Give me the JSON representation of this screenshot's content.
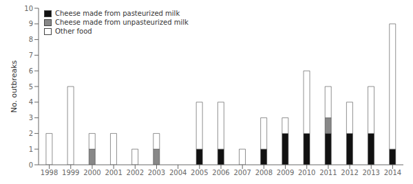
{
  "chart_data": {
    "type": "bar",
    "stacked": true,
    "categories": [
      "1998",
      "1999",
      "2000",
      "2001",
      "2002",
      "2003",
      "2004",
      "2005",
      "2006",
      "2007",
      "2008",
      "2009",
      "2010",
      "2011",
      "2012",
      "2013",
      "2014"
    ],
    "series": [
      {
        "name": "Cheese made from pasteurized milk",
        "color": "#111111",
        "values": [
          0,
          0,
          0,
          0,
          0,
          0,
          0,
          1,
          1,
          0,
          1,
          2,
          2,
          2,
          2,
          2,
          1
        ]
      },
      {
        "name": "Cheese made from unpasteurized milk",
        "color": "#888888",
        "values": [
          0,
          0,
          1,
          0,
          0,
          1,
          0,
          0,
          0,
          0,
          0,
          0,
          0,
          1,
          0,
          0,
          0
        ]
      },
      {
        "name": "Other food",
        "color": "#ffffff",
        "values": [
          2,
          5,
          1,
          2,
          1,
          1,
          0,
          3,
          3,
          1,
          2,
          1,
          4,
          2,
          2,
          3,
          8
        ]
      }
    ],
    "ylabel": "No. outbreaks",
    "ylim": [
      0,
      10
    ],
    "yticks": [
      0,
      1,
      2,
      3,
      4,
      5,
      6,
      7,
      8,
      9,
      10
    ],
    "grid": false,
    "legend": "upper left"
  }
}
